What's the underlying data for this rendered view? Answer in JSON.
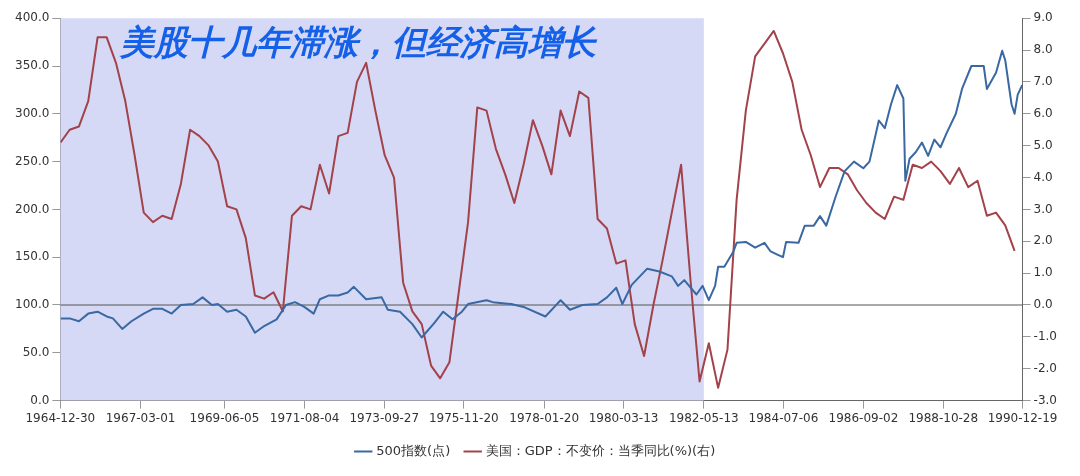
{
  "chart_data": {
    "type": "line",
    "title": "美股十几年滞涨，但经济高增长",
    "xlim": [
      "1964-12-30",
      "1990-12-19"
    ],
    "xticks": [
      "1964-12-30",
      "1967-03-01",
      "1969-06-05",
      "1971-08-04",
      "1973-09-27",
      "1975-11-20",
      "1978-01-20",
      "1980-03-13",
      "1982-05-13",
      "1984-07-06",
      "1986-09-02",
      "1988-10-28",
      "1990-12-19"
    ],
    "ylim": [
      0,
      400
    ],
    "yticks": [
      {
        "value": 0,
        "label": "0.0"
      },
      {
        "value": 50,
        "label": "50.0"
      },
      {
        "value": 100,
        "label": "100.0"
      },
      {
        "value": 150,
        "label": "150.0"
      },
      {
        "value": 200,
        "label": "200.0"
      },
      {
        "value": 250,
        "label": "250.0"
      },
      {
        "value": 300,
        "label": "300.0"
      },
      {
        "value": 350,
        "label": "350.0"
      },
      {
        "value": 400,
        "label": "400.0"
      }
    ],
    "y2lim": [
      -3,
      9
    ],
    "y2ticks": [
      {
        "value": -3,
        "label": "-3.0"
      },
      {
        "value": -2,
        "label": "-2.0"
      },
      {
        "value": -1,
        "label": "-1.0"
      },
      {
        "value": 0,
        "label": "0.0"
      },
      {
        "value": 1,
        "label": "1.0"
      },
      {
        "value": 2,
        "label": "2.0"
      },
      {
        "value": 3,
        "label": "3.0"
      },
      {
        "value": 4,
        "label": "4.0"
      },
      {
        "value": 5,
        "label": "5.0"
      },
      {
        "value": 6,
        "label": "6.0"
      },
      {
        "value": 7,
        "label": "7.0"
      },
      {
        "value": 8,
        "label": "8.0"
      },
      {
        "value": 9,
        "label": "9.0"
      }
    ],
    "bands": [
      {
        "axis": "x",
        "from": "1964-12-30",
        "to": "1982-05-13",
        "color": "#d5d9f5"
      }
    ],
    "ref_lines": [
      {
        "axis": "y2",
        "value": 0,
        "color": "#555555"
      }
    ],
    "legend": "bottom",
    "series": [
      {
        "name": "500指数(点)",
        "color": "#3a68a3",
        "x": [
          "1965-01",
          "1965-04",
          "1965-07",
          "1965-10",
          "1966-01",
          "1966-04",
          "1966-06",
          "1966-09",
          "1966-12",
          "1967-04",
          "1967-07",
          "1967-10",
          "1968-01",
          "1968-04",
          "1968-08",
          "1968-11",
          "1969-02",
          "1969-04",
          "1969-07",
          "1969-10",
          "1970-01",
          "1970-04",
          "1970-07",
          "1970-11",
          "1971-02",
          "1971-05",
          "1971-08",
          "1971-11",
          "1972-01",
          "1972-04",
          "1972-07",
          "1972-10",
          "1972-12",
          "1973-04",
          "1973-09",
          "1973-11",
          "1974-03",
          "1974-07",
          "1974-10",
          "1975-02",
          "1975-05",
          "1975-08",
          "1975-11",
          "1976-01",
          "1976-07",
          "1976-09",
          "1977-03",
          "1977-07",
          "1978-02",
          "1978-05",
          "1978-07",
          "1978-10",
          "1979-02",
          "1979-07",
          "1979-10",
          "1980-01",
          "1980-03",
          "1980-06",
          "1980-11",
          "1981-03",
          "1981-07",
          "1981-09",
          "1981-11",
          "1982-03",
          "1982-05",
          "1982-07",
          "1982-09",
          "1982-10",
          "1982-12",
          "1983-03",
          "1983-04",
          "1983-07",
          "1983-10",
          "1984-01",
          "1984-03",
          "1984-05",
          "1984-07",
          "1984-08",
          "1984-12",
          "1985-02",
          "1985-05",
          "1985-07",
          "1985-09",
          "1985-12",
          "1986-03",
          "1986-06",
          "1986-09",
          "1986-11",
          "1987-02",
          "1987-04",
          "1987-06",
          "1987-08",
          "1987-10-01",
          "1987-10-20",
          "1987-12",
          "1988-02",
          "1988-04",
          "1988-06",
          "1988-08",
          "1988-10",
          "1988-12",
          "1989-03",
          "1989-05",
          "1989-08",
          "1989-10",
          "1989-12",
          "1990-01",
          "1990-04",
          "1990-06",
          "1990-07",
          "1990-09",
          "1990-10",
          "1990-11",
          "1990-12-15"
        ],
        "values": [
          86,
          86,
          83,
          91,
          93,
          88,
          86,
          75,
          83,
          91,
          96,
          96,
          91,
          100,
          101,
          108,
          100,
          101,
          93,
          95,
          88,
          71,
          78,
          85,
          100,
          103,
          98,
          91,
          106,
          110,
          110,
          113,
          119,
          106,
          108,
          95,
          93,
          80,
          66,
          81,
          93,
          85,
          93,
          101,
          105,
          103,
          101,
          98,
          88,
          98,
          105,
          95,
          100,
          101,
          108,
          118,
          101,
          121,
          138,
          135,
          130,
          120,
          126,
          111,
          120,
          105,
          120,
          140,
          140,
          156,
          165,
          166,
          160,
          165,
          156,
          153,
          150,
          166,
          165,
          183,
          183,
          193,
          183,
          213,
          240,
          250,
          243,
          250,
          293,
          285,
          310,
          330,
          316,
          230,
          253,
          260,
          270,
          256,
          273,
          265,
          280,
          300,
          326,
          350,
          350,
          350,
          326,
          343,
          366,
          356,
          310,
          300,
          320,
          330
        ]
      },
      {
        "name": "美国：GDP：不变价：当季同比(%)(右)",
        "color": "#a2424a",
        "axis": "y2",
        "x": [
          "1965-01",
          "1965-04",
          "1965-07",
          "1965-10",
          "1966-01",
          "1966-04",
          "1966-07",
          "1966-10",
          "1967-01",
          "1967-04",
          "1967-07",
          "1967-10",
          "1968-01",
          "1968-04",
          "1968-07",
          "1968-10",
          "1969-01",
          "1969-04",
          "1969-07",
          "1969-10",
          "1970-01",
          "1970-04",
          "1970-07",
          "1970-10",
          "1971-01",
          "1971-04",
          "1971-07",
          "1971-10",
          "1972-01",
          "1972-04",
          "1972-07",
          "1972-10",
          "1973-01",
          "1973-04",
          "1973-07",
          "1973-10",
          "1974-01",
          "1974-04",
          "1974-07",
          "1974-10",
          "1975-01",
          "1975-04",
          "1975-07",
          "1975-10",
          "1976-01",
          "1976-04",
          "1976-07",
          "1976-10",
          "1977-01",
          "1977-04",
          "1977-07",
          "1977-10",
          "1978-01",
          "1978-04",
          "1978-07",
          "1978-10",
          "1979-01",
          "1979-04",
          "1979-07",
          "1979-10",
          "1980-01",
          "1980-04",
          "1980-07",
          "1980-10",
          "1981-01",
          "1981-04",
          "1981-07",
          "1981-10",
          "1982-01",
          "1982-04",
          "1982-07",
          "1982-10",
          "1983-01",
          "1983-04",
          "1983-07",
          "1983-10",
          "1984-01",
          "1984-04",
          "1984-07",
          "1984-10",
          "1985-01",
          "1985-04",
          "1985-07",
          "1985-10",
          "1986-01",
          "1986-04",
          "1986-07",
          "1986-10",
          "1987-01",
          "1987-04",
          "1987-07",
          "1987-10",
          "1988-01",
          "1988-04",
          "1988-07",
          "1988-10",
          "1989-01",
          "1989-04",
          "1989-07",
          "1989-10",
          "1990-01",
          "1990-04",
          "1990-07",
          "1990-10"
        ],
        "values": [
          5.1,
          5.5,
          5.6,
          6.4,
          8.4,
          8.4,
          7.6,
          6.4,
          4.7,
          2.9,
          2.6,
          2.8,
          2.7,
          3.8,
          5.5,
          5.3,
          5.0,
          4.5,
          3.1,
          3.0,
          2.1,
          0.3,
          0.2,
          0.4,
          -0.2,
          2.8,
          3.1,
          3.0,
          4.4,
          3.5,
          5.3,
          5.4,
          7.0,
          7.6,
          6.1,
          4.7,
          4.0,
          0.7,
          -0.2,
          -0.6,
          -1.9,
          -2.3,
          -1.8,
          0.4,
          2.6,
          6.2,
          6.1,
          4.9,
          4.1,
          3.2,
          4.4,
          5.8,
          5.0,
          4.1,
          6.1,
          5.3,
          6.7,
          6.5,
          2.7,
          2.4,
          1.3,
          1.4,
          -0.6,
          -1.6,
          0.0,
          1.4,
          2.9,
          4.4,
          0.8,
          -2.4,
          -1.2,
          -2.6,
          -1.4,
          3.3,
          6.1,
          7.8,
          8.2,
          8.6,
          7.9,
          7.0,
          5.5,
          4.7,
          3.7,
          4.3,
          4.3,
          4.1,
          3.6,
          3.2,
          2.9,
          2.7,
          3.4,
          3.3,
          4.4,
          4.3,
          4.5,
          4.2,
          3.8,
          4.3,
          3.7,
          3.9,
          2.8,
          2.9,
          2.5,
          1.7
        ]
      }
    ]
  }
}
